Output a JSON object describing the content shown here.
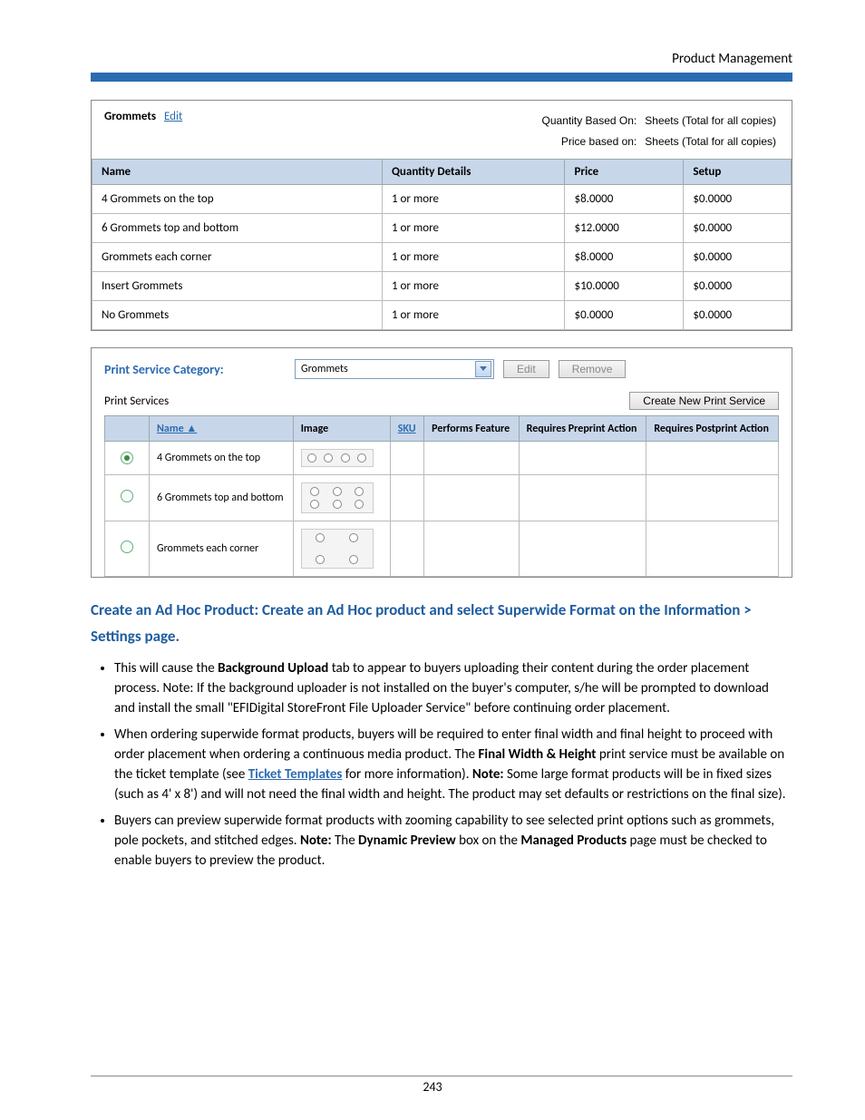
{
  "header": {
    "right": "Product Management"
  },
  "colors": {
    "bar": "#2b6bb2",
    "th_bg": "#c8d6ea",
    "link": "#2b6bb2"
  },
  "shot1": {
    "title": "Grommets",
    "edit_label": "Edit",
    "qbo_label": "Quantity Based On:",
    "qbo_value": "Sheets (Total for all copies)",
    "pbo_label": "Price based on:",
    "pbo_value": "Sheets (Total for all copies)",
    "headers": [
      "Name",
      "Quantity Details",
      "Price",
      "Setup"
    ],
    "rows": [
      [
        "4 Grommets on the top",
        "1 or more",
        "$8.0000",
        "$0.0000"
      ],
      [
        "6 Grommets top and bottom",
        "1 or more",
        "$12.0000",
        "$0.0000"
      ],
      [
        "Grommets each corner",
        "1 or more",
        "$8.0000",
        "$0.0000"
      ],
      [
        "Insert Grommets",
        "1 or more",
        "$10.0000",
        "$0.0000"
      ],
      [
        "No Grommets",
        "1 or more",
        "$0.0000",
        "$0.0000"
      ]
    ]
  },
  "shot2": {
    "cat_label": "Print Service Category:",
    "cat_value": "Grommets",
    "edit_btn": "Edit",
    "remove_btn": "Remove",
    "services_label": "Print Services",
    "create_btn": "Create New Print Service",
    "headers": [
      "",
      "Name ▲",
      "Image",
      "SKU",
      "Performs Feature",
      "Requires Preprint Action",
      "Requires Postprint Action"
    ],
    "rows": [
      {
        "selected": true,
        "name": "4 Grommets on the top",
        "image": "g4"
      },
      {
        "selected": false,
        "name": "6 Grommets top and bottom",
        "image": "g6"
      },
      {
        "selected": false,
        "name": "Grommets each corner",
        "image": "gc"
      }
    ]
  },
  "section_heading": "Create an Ad Hoc Product: Create an Ad Hoc product and select Superwide Format on the Information > Settings page.",
  "bullets": {
    "b1_a": "This will cause the ",
    "b1_b": "Background Upload",
    "b1_c": " tab to appear to buyers uploading their content during the order placement process. Note: If the background uploader is not installed on the buyer's computer, s/he will be prompted to download and install the small \"EFIDigital StoreFront File Uploader Service\" before continuing order placement.",
    "b2_a": "When ordering superwide format products, buyers will be required to enter final width and final height to proceed with order placement when ordering a continuous media product. The ",
    "b2_b": "Final Width & Height",
    "b2_c": " print service must be available on the ticket template (see ",
    "b2_link": "Ticket Templates",
    "b2_d": " for more information). ",
    "b2_note": "Note:",
    "b2_e": " Some large format products will be in fixed sizes (such as 4' x 8') and will not need the final width and height. The product may set defaults or restrictions on the final size).",
    "b3_a": "Buyers can preview superwide format products with zooming capability to see selected print options such as grommets, pole pockets, and stitched edges. ",
    "b3_note": "Note:",
    "b3_b": " The ",
    "b3_c": "Dynamic Preview",
    "b3_d": " box on the ",
    "b3_e": "Managed Products",
    "b3_f": " page must be checked to enable buyers to preview the product."
  },
  "page_number": "243"
}
